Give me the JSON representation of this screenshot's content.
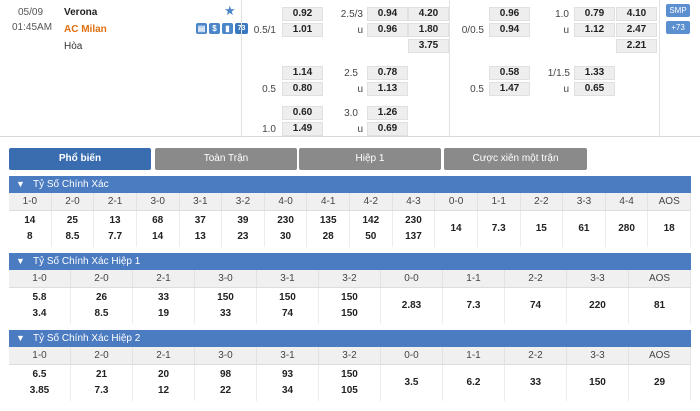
{
  "match": {
    "date": "05/09",
    "time": "01:45AM",
    "home": "Verona",
    "away": "AC Milan",
    "draw": "Hòa",
    "icon_count": "73",
    "smp_label": "SMP",
    "plus_label": "+73",
    "ft": {
      "h1": "0.92",
      "hcap": "2.5/3",
      "o": "0.94",
      "x1": "4.20",
      "line_l": "0.5/1",
      "h2": "1.01",
      "u": "u",
      "o2": "0.96",
      "x2": "1.80",
      "x3": "3.75",
      "r2_a": "1.14",
      "r2_line": "2.5",
      "r2_b": "0.78",
      "r2_l": "0.5",
      "r2_c": "0.80",
      "r2_u": "u",
      "r2_d": "1.13",
      "r3_a": "0.60",
      "r3_line": "3.0",
      "r3_b": "1.26",
      "r3_l": "1.0",
      "r3_c": "1.49",
      "r3_u": "u",
      "r3_d": "0.69"
    },
    "ht": {
      "h1": "0.96",
      "hcap": "1.0",
      "o": "0.79",
      "x1": "4.10",
      "line_l": "0/0.5",
      "h2": "0.94",
      "u": "u",
      "o2": "1.12",
      "x2": "2.47",
      "x3": "2.21",
      "r2_a": "0.58",
      "r2_line": "1/1.5",
      "r2_b": "1.33",
      "r2_l": "0.5",
      "r2_c": "1.47",
      "r2_u": "u",
      "r2_d": "0.65"
    }
  },
  "tabs": [
    "Phổ biến",
    "Toàn Trận",
    "Hiệp 1",
    "Cược xiên một trận"
  ],
  "sections": [
    {
      "title": "Tỷ Số Chính Xác",
      "headers": [
        "1-0",
        "2-0",
        "2-1",
        "3-0",
        "3-1",
        "3-2",
        "4-0",
        "4-1",
        "4-2",
        "4-3",
        "0-0",
        "1-1",
        "2-2",
        "3-3",
        "4-4",
        "AOS"
      ],
      "top": [
        "14",
        "25",
        "13",
        "68",
        "37",
        "39",
        "230",
        "135",
        "142",
        "230",
        "",
        "",
        "",
        "",
        "",
        ""
      ],
      "mid": [
        "",
        "",
        "",
        "",
        "",
        "",
        "",
        "",
        "",
        "",
        "14",
        "7.3",
        "15",
        "61",
        "280",
        "18"
      ],
      "bot": [
        "8",
        "8.5",
        "7.7",
        "14",
        "13",
        "23",
        "30",
        "28",
        "50",
        "137",
        "",
        "",
        "",
        "",
        "",
        ""
      ]
    },
    {
      "title": "Tỷ Số Chính Xác Hiệp 1",
      "headers": [
        "1-0",
        "2-0",
        "2-1",
        "3-0",
        "3-1",
        "3-2",
        "0-0",
        "1-1",
        "2-2",
        "3-3",
        "AOS"
      ],
      "top": [
        "5.8",
        "26",
        "33",
        "150",
        "150",
        "150",
        "",
        "",
        "",
        "",
        ""
      ],
      "mid": [
        "",
        "",
        "",
        "",
        "",
        "",
        "2.83",
        "7.3",
        "74",
        "220",
        "81"
      ],
      "bot": [
        "3.4",
        "8.5",
        "19",
        "33",
        "74",
        "150",
        "",
        "",
        "",
        "",
        ""
      ]
    },
    {
      "title": "Tỷ Số Chính Xác Hiệp 2",
      "headers": [
        "1-0",
        "2-0",
        "2-1",
        "3-0",
        "3-1",
        "3-2",
        "0-0",
        "1-1",
        "2-2",
        "3-3",
        "AOS"
      ],
      "top": [
        "6.5",
        "21",
        "20",
        "98",
        "93",
        "150",
        "",
        "",
        "",
        "",
        ""
      ],
      "mid": [
        "",
        "",
        "",
        "",
        "",
        "",
        "3.5",
        "6.2",
        "33",
        "150",
        "29"
      ],
      "bot": [
        "3.85",
        "7.3",
        "12",
        "22",
        "34",
        "105",
        "",
        "",
        "",
        "",
        ""
      ]
    }
  ]
}
